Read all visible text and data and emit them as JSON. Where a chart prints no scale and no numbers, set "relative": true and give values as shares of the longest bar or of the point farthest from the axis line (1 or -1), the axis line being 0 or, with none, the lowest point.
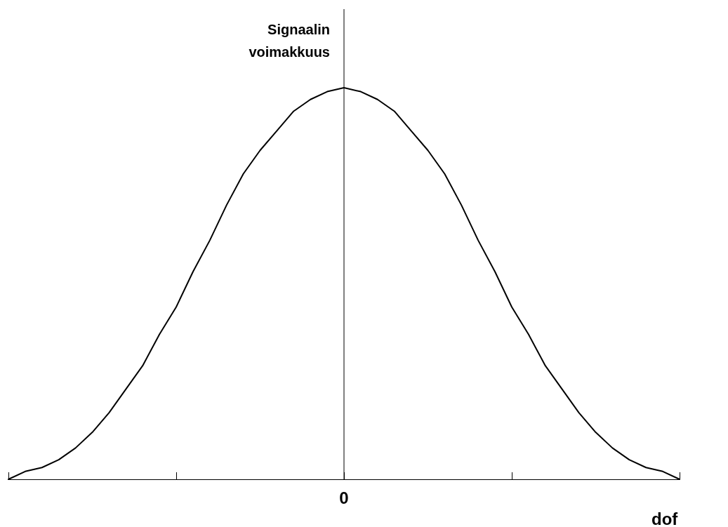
{
  "chart_data": {
    "type": "line",
    "relative": true,
    "xlabel": "dof",
    "ylabel": "Signaalin voimakkuus",
    "categories": [
      null,
      null,
      null,
      null,
      null,
      null,
      null,
      null,
      null,
      null,
      null,
      null,
      null,
      null,
      null,
      null,
      null,
      null,
      null,
      null,
      null,
      null,
      null,
      null,
      null,
      null,
      null,
      null,
      null,
      null,
      null,
      null,
      null,
      null,
      null,
      null,
      null,
      null,
      null,
      null,
      null
    ],
    "annotations": [
      "0"
    ],
    "series": [
      {
        "color": "#000000",
        "values": [
          0,
          0.02,
          0.03,
          0.05,
          0.08,
          0.12,
          0.17,
          0.23,
          0.29,
          0.37,
          0.44,
          0.53,
          0.61,
          0.7,
          0.78,
          0.84,
          0.89,
          0.94,
          0.97,
          0.99,
          1,
          0.99,
          0.97,
          0.94,
          0.89,
          0.84,
          0.78,
          0.7,
          0.61,
          0.53,
          0.44,
          0.37,
          0.29,
          0.23,
          0.17,
          0.12,
          0.08,
          0.05,
          0.03,
          0.02,
          0
        ]
      }
    ],
    "marker": "none",
    "line_style": "solid",
    "grid": false
  }
}
